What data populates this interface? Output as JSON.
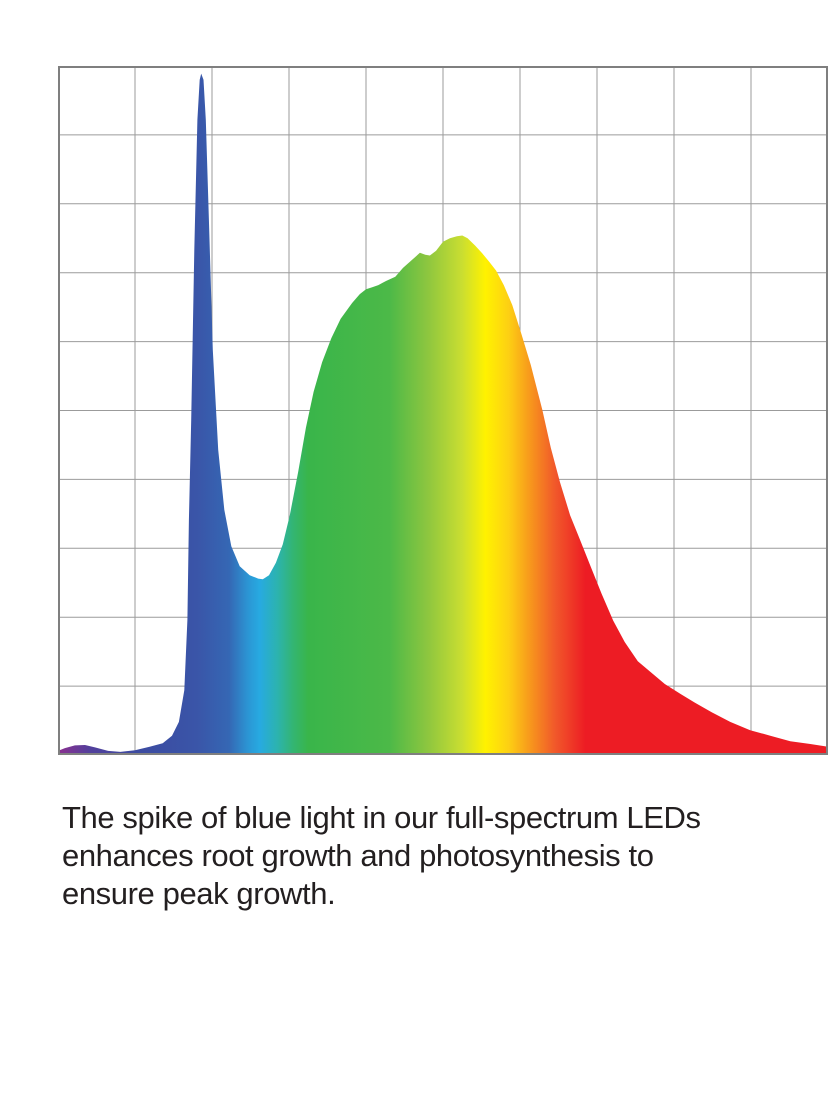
{
  "page": {
    "background": "#ffffff"
  },
  "caption": {
    "color": "#231f20",
    "lines": [
      "The spike of blue light in our full-spectrum LEDs",
      "enhances root growth and photosynthesis to",
      "ensure peak growth."
    ]
  },
  "chart_data": {
    "type": "area",
    "title": "",
    "xlabel": "",
    "ylabel": "",
    "axis_labels_visible": false,
    "x_axis_meaning": "wavelength (unlabeled, violet to red left-to-right)",
    "y_axis_meaning": "relative spectral intensity (unlabeled)",
    "xlim": [
      0,
      1
    ],
    "ylim": [
      0,
      1
    ],
    "grid": {
      "rows": 10,
      "cols": 10,
      "line_color": "#9b9b9b",
      "border_color": "#7f7f7f",
      "background": "#ffffff"
    },
    "features": {
      "blue_spike_x": 0.186,
      "blue_spike_intensity": 0.989,
      "valley_x": 0.266,
      "valley_intensity": 0.255,
      "main_peak_x": 0.525,
      "main_peak_intensity": 0.754
    },
    "gradient_stops": [
      {
        "offset": 0.0,
        "color": "#8b2f8f"
      },
      {
        "offset": 0.042,
        "color": "#52409c"
      },
      {
        "offset": 0.1,
        "color": "#3c4aa0"
      },
      {
        "offset": 0.18,
        "color": "#3a55a8"
      },
      {
        "offset": 0.222,
        "color": "#3567b4"
      },
      {
        "offset": 0.247,
        "color": "#2b96d4"
      },
      {
        "offset": 0.262,
        "color": "#27aae1"
      },
      {
        "offset": 0.285,
        "color": "#2cb3ae"
      },
      {
        "offset": 0.305,
        "color": "#33b573"
      },
      {
        "offset": 0.325,
        "color": "#39b54a"
      },
      {
        "offset": 0.43,
        "color": "#4cb948"
      },
      {
        "offset": 0.48,
        "color": "#8dc63f"
      },
      {
        "offset": 0.525,
        "color": "#cade31"
      },
      {
        "offset": 0.555,
        "color": "#fff200"
      },
      {
        "offset": 0.585,
        "color": "#fdd013"
      },
      {
        "offset": 0.615,
        "color": "#f7941d"
      },
      {
        "offset": 0.645,
        "color": "#f1592a"
      },
      {
        "offset": 0.685,
        "color": "#ed1c24"
      },
      {
        "offset": 1.0,
        "color": "#ed1c24"
      }
    ],
    "series": [
      {
        "name": "full-spectrum LED spectral power distribution",
        "points": [
          [
            0.0,
            0.006
          ],
          [
            0.009,
            0.01
          ],
          [
            0.022,
            0.014
          ],
          [
            0.035,
            0.0145
          ],
          [
            0.048,
            0.011
          ],
          [
            0.065,
            0.006
          ],
          [
            0.081,
            0.0045
          ],
          [
            0.1,
            0.007
          ],
          [
            0.119,
            0.012
          ],
          [
            0.136,
            0.017
          ],
          [
            0.148,
            0.028
          ],
          [
            0.157,
            0.048
          ],
          [
            0.164,
            0.094
          ],
          [
            0.168,
            0.196
          ],
          [
            0.17,
            0.341
          ],
          [
            0.173,
            0.486
          ],
          [
            0.177,
            0.733
          ],
          [
            0.181,
            0.922
          ],
          [
            0.184,
            0.98
          ],
          [
            0.186,
            0.989
          ],
          [
            0.189,
            0.98
          ],
          [
            0.192,
            0.922
          ],
          [
            0.196,
            0.777
          ],
          [
            0.201,
            0.588
          ],
          [
            0.208,
            0.443
          ],
          [
            0.216,
            0.356
          ],
          [
            0.225,
            0.303
          ],
          [
            0.236,
            0.274
          ],
          [
            0.249,
            0.261
          ],
          [
            0.26,
            0.256
          ],
          [
            0.266,
            0.255
          ],
          [
            0.274,
            0.261
          ],
          [
            0.283,
            0.279
          ],
          [
            0.292,
            0.306
          ],
          [
            0.301,
            0.348
          ],
          [
            0.312,
            0.411
          ],
          [
            0.322,
            0.475
          ],
          [
            0.332,
            0.527
          ],
          [
            0.343,
            0.57
          ],
          [
            0.355,
            0.605
          ],
          [
            0.367,
            0.633
          ],
          [
            0.382,
            0.656
          ],
          [
            0.392,
            0.669
          ],
          [
            0.4,
            0.676
          ],
          [
            0.408,
            0.679
          ],
          [
            0.416,
            0.682
          ],
          [
            0.426,
            0.688
          ],
          [
            0.438,
            0.694
          ],
          [
            0.448,
            0.707
          ],
          [
            0.457,
            0.716
          ],
          [
            0.465,
            0.724
          ],
          [
            0.47,
            0.729
          ],
          [
            0.477,
            0.726
          ],
          [
            0.483,
            0.725
          ],
          [
            0.491,
            0.732
          ],
          [
            0.5,
            0.745
          ],
          [
            0.509,
            0.75
          ],
          [
            0.518,
            0.753
          ],
          [
            0.525,
            0.754
          ],
          [
            0.532,
            0.75
          ],
          [
            0.542,
            0.739
          ],
          [
            0.551,
            0.728
          ],
          [
            0.56,
            0.716
          ],
          [
            0.569,
            0.703
          ],
          [
            0.579,
            0.682
          ],
          [
            0.59,
            0.653
          ],
          [
            0.601,
            0.614
          ],
          [
            0.614,
            0.566
          ],
          [
            0.629,
            0.501
          ],
          [
            0.64,
            0.446
          ],
          [
            0.652,
            0.396
          ],
          [
            0.665,
            0.348
          ],
          [
            0.678,
            0.312
          ],
          [
            0.692,
            0.273
          ],
          [
            0.706,
            0.234
          ],
          [
            0.721,
            0.195
          ],
          [
            0.736,
            0.164
          ],
          [
            0.753,
            0.136
          ],
          [
            0.769,
            0.121
          ],
          [
            0.788,
            0.103
          ],
          [
            0.808,
            0.089
          ],
          [
            0.827,
            0.076
          ],
          [
            0.849,
            0.062
          ],
          [
            0.873,
            0.048
          ],
          [
            0.899,
            0.036
          ],
          [
            0.925,
            0.028
          ],
          [
            0.951,
            0.02
          ],
          [
            0.977,
            0.016
          ],
          [
            1.0,
            0.012
          ]
        ]
      }
    ]
  }
}
